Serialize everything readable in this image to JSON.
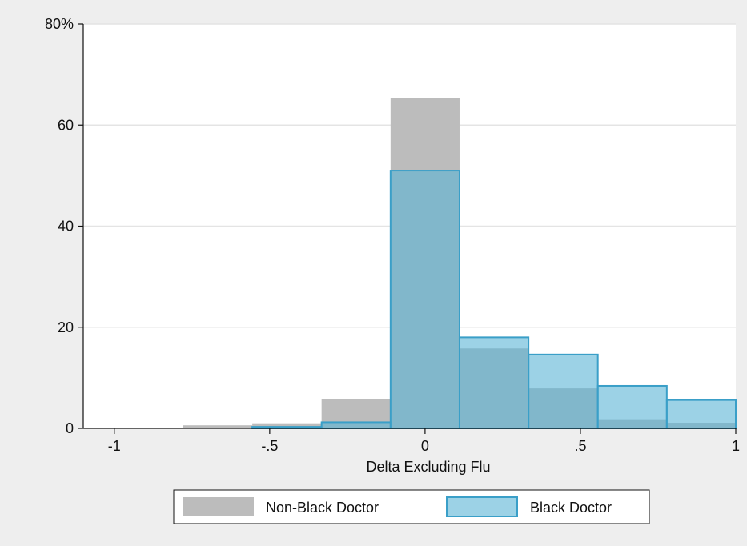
{
  "chart_data": {
    "type": "bar",
    "histogram": true,
    "bin_edges": [
      -0.778,
      -0.556,
      -0.333,
      -0.111,
      0.111,
      0.333,
      0.556,
      0.778,
      1.0
    ],
    "series": [
      {
        "name": "Non-Black Doctor",
        "values": [
          0.6,
          1.0,
          5.8,
          65.4,
          15.8,
          7.9,
          1.8,
          1.1
        ],
        "color": "#bcbcbc",
        "opacity": 1.0
      },
      {
        "name": "Black Doctor",
        "values": [
          0.0,
          0.3,
          1.2,
          51.0,
          18.0,
          14.6,
          8.4,
          5.6
        ],
        "color": "#5ab4d6",
        "opacity": 0.6
      }
    ],
    "title": "",
    "xlabel": "Delta Excluding Flu",
    "ylabel": "",
    "xlim": [
      -1.1,
      1.0
    ],
    "ylim": [
      0,
      80
    ],
    "x_ticks": [
      {
        "value": -1,
        "label": "-1"
      },
      {
        "value": -0.5,
        "label": "-.5"
      },
      {
        "value": 0,
        "label": "0"
      },
      {
        "value": 0.5,
        "label": ".5"
      },
      {
        "value": 1,
        "label": "1"
      }
    ],
    "y_ticks": [
      {
        "value": 0,
        "label": "0"
      },
      {
        "value": 20,
        "label": "20"
      },
      {
        "value": 40,
        "label": "40"
      },
      {
        "value": 60,
        "label": "60"
      },
      {
        "value": 80,
        "label": "80%"
      }
    ],
    "grid": true,
    "legend_position": "bottom",
    "colors": {
      "background": "#eeeeee",
      "plot_background": "#ffffff",
      "grid": "#e4e4e4",
      "outline": "#3a9fc8"
    }
  }
}
